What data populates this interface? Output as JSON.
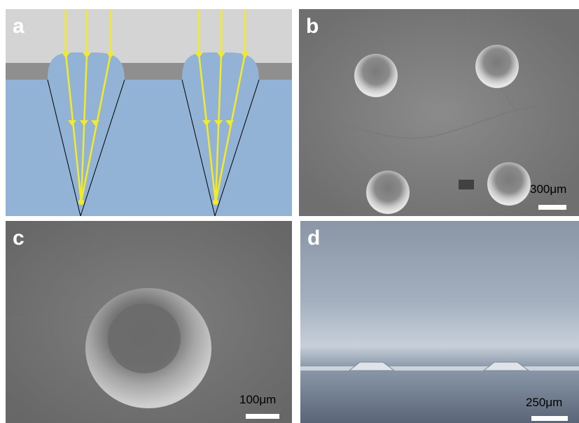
{
  "panels": {
    "a": {
      "label": "a",
      "label_color": "#ffffff"
    },
    "b": {
      "label": "b",
      "label_color": "#ffffff",
      "scale_text": "300μm"
    },
    "c": {
      "label": "c",
      "label_color": "#ffffff",
      "scale_text": "100μm"
    },
    "d": {
      "label": "d",
      "label_color": "#ffffff",
      "scale_text": "250μm"
    }
  },
  "colors": {
    "top_layer": "#d4d4d4",
    "middle_layer": "#8f8f8f",
    "substrate": "#93b3d6",
    "lens": "#93b3d6",
    "ray": "#f3ea2a",
    "cone_line": "#000000"
  }
}
